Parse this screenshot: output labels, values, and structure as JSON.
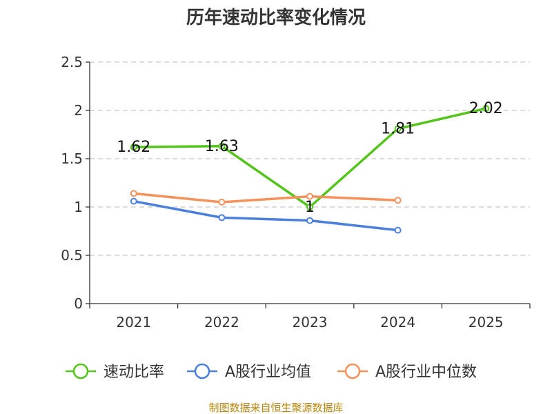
{
  "chart_data": {
    "type": "line",
    "title": "历年速动比率变化情况",
    "categories": [
      "2021",
      "2022",
      "2023",
      "2024",
      "2025"
    ],
    "ylim": [
      0,
      2.5
    ],
    "yticks": [
      "0",
      "0.5",
      "1",
      "1.5",
      "2",
      "2.5"
    ],
    "grid": true,
    "legend_position": "bottom",
    "series": [
      {
        "name": "速动比率",
        "color": "#52c41a",
        "values": [
          1.62,
          1.63,
          1.0,
          1.81,
          2.02
        ],
        "labels": [
          "1.62",
          "1.63",
          "1",
          "1.81",
          "2.02"
        ]
      },
      {
        "name": "A股行业均值",
        "color": "#4a7fdb",
        "values": [
          1.06,
          0.89,
          0.86,
          0.76,
          null
        ]
      },
      {
        "name": "A股行业中位数",
        "color": "#f5915a",
        "values": [
          1.14,
          1.05,
          1.11,
          1.07,
          null
        ]
      }
    ],
    "source": "制图数据来自恒生聚源数据库"
  }
}
